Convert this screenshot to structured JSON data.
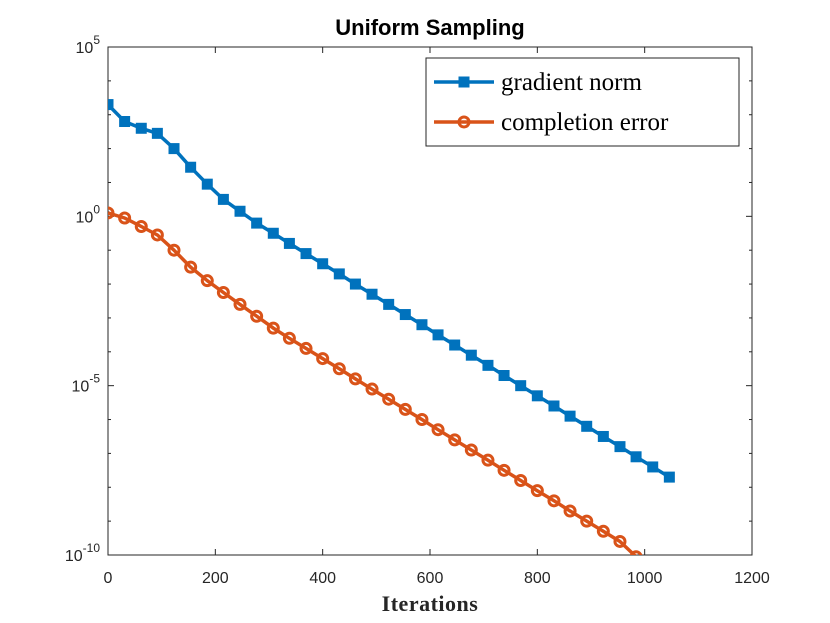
{
  "chart_data": {
    "type": "line",
    "title": "Uniform Sampling",
    "xlabel": "Iterations",
    "ylabel": "",
    "xlim": [
      0,
      1200
    ],
    "ylim_exponents": [
      -10,
      5
    ],
    "yscale": "log",
    "x_ticks": [
      "0",
      "200",
      "400",
      "600",
      "800",
      "1000",
      "1200"
    ],
    "y_ticks": [
      {
        "base": "10",
        "exp": "5",
        "value": 100000
      },
      {
        "base": "10",
        "exp": "0",
        "value": 1
      },
      {
        "base": "10",
        "exp": "-5",
        "value": 1e-05
      },
      {
        "base": "10",
        "exp": "-10",
        "value": 1e-10
      }
    ],
    "grid": false,
    "legend_position": "top-right",
    "series": [
      {
        "name": "gradient norm",
        "color": "#0072BD",
        "marker": "square",
        "x": [
          0,
          31,
          62,
          92,
          123,
          154,
          185,
          215,
          246,
          277,
          308,
          338,
          369,
          400,
          431,
          461,
          492,
          523,
          554,
          585,
          615,
          646,
          677,
          708,
          738,
          769,
          800,
          831,
          861,
          892,
          923,
          954,
          984,
          1015,
          1046
        ],
        "y_log10": [
          3.3,
          2.8,
          2.6,
          2.45,
          2.0,
          1.45,
          0.95,
          0.5,
          0.15,
          -0.2,
          -0.5,
          -0.8,
          -1.1,
          -1.4,
          -1.7,
          -2.0,
          -2.3,
          -2.6,
          -2.9,
          -3.2,
          -3.5,
          -3.8,
          -4.1,
          -4.4,
          -4.7,
          -5.0,
          -5.3,
          -5.6,
          -5.9,
          -6.2,
          -6.5,
          -6.8,
          -7.1,
          -7.4,
          -7.7
        ]
      },
      {
        "name": "completion error",
        "color": "#D95319",
        "marker": "circle",
        "x": [
          0,
          31,
          62,
          92,
          123,
          154,
          185,
          215,
          246,
          277,
          308,
          338,
          369,
          400,
          431,
          461,
          492,
          523,
          554,
          585,
          615,
          646,
          677,
          708,
          738,
          769,
          800,
          831,
          861,
          892,
          923,
          954,
          984
        ],
        "y_log10": [
          0.1,
          -0.05,
          -0.3,
          -0.55,
          -1.0,
          -1.5,
          -1.9,
          -2.25,
          -2.6,
          -2.95,
          -3.3,
          -3.6,
          -3.9,
          -4.2,
          -4.5,
          -4.8,
          -5.1,
          -5.4,
          -5.7,
          -6.0,
          -6.3,
          -6.6,
          -6.9,
          -7.2,
          -7.5,
          -7.8,
          -8.1,
          -8.4,
          -8.7,
          -9.0,
          -9.3,
          -9.6,
          -10.05
        ]
      }
    ]
  }
}
